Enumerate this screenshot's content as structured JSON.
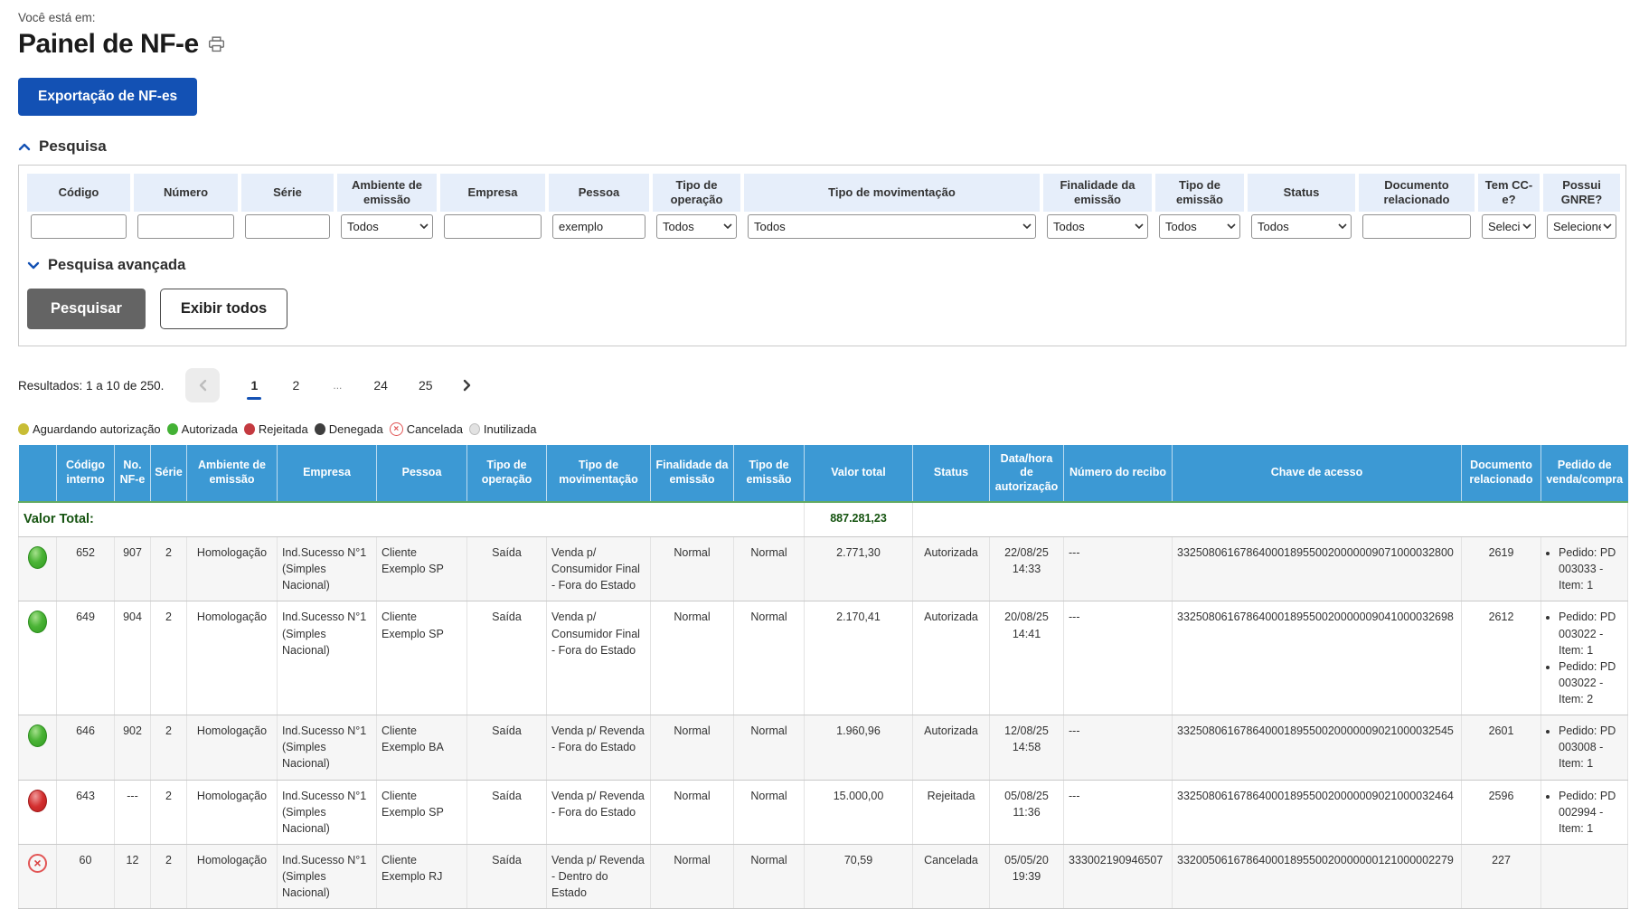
{
  "breadcrumb": "Você está em:",
  "title": "Painel de NF-e",
  "export_button": "Exportação de NF-es",
  "accent_color": "#1351b4",
  "search": {
    "title": "Pesquisa",
    "advanced_title": "Pesquisa avançada",
    "buttons": {
      "search": "Pesquisar",
      "show_all": "Exibir todos"
    },
    "filters": [
      {
        "label": "Código",
        "type": "text",
        "value": ""
      },
      {
        "label": "Número",
        "type": "text",
        "value": ""
      },
      {
        "label": "Série",
        "type": "text",
        "value": ""
      },
      {
        "label": "Ambiente de emissão",
        "type": "select",
        "value": "Todos"
      },
      {
        "label": "Empresa",
        "type": "text",
        "value": ""
      },
      {
        "label": "Pessoa",
        "type": "text",
        "value": "exemplo"
      },
      {
        "label": "Tipo de operação",
        "type": "select",
        "value": "Todos"
      },
      {
        "label": "Tipo de movimentação",
        "type": "select",
        "value": "Todos"
      },
      {
        "label": "Finalidade da emissão",
        "type": "select",
        "value": "Todos"
      },
      {
        "label": "Tipo de emissão",
        "type": "select",
        "value": "Todos"
      },
      {
        "label": "Status",
        "type": "select",
        "value": "Todos"
      },
      {
        "label": "Documento relacionado",
        "type": "text",
        "value": ""
      },
      {
        "label": "Tem CC-e?",
        "type": "select",
        "value": "Selecione"
      },
      {
        "label": "Possui GNRE?",
        "type": "select",
        "value": "Selecione"
      }
    ]
  },
  "pagination": {
    "results_text": "Resultados: 1 a 10 de 250.",
    "pages": [
      {
        "label": "1",
        "active": true
      },
      {
        "label": "2",
        "active": false
      },
      {
        "label": "...",
        "active": false
      },
      {
        "label": "24",
        "active": false
      },
      {
        "label": "25",
        "active": false
      }
    ]
  },
  "legend": [
    {
      "label": "Aguardando autorização",
      "shape": "dot",
      "color": "#c8bd35"
    },
    {
      "label": "Autorizada",
      "shape": "dot",
      "color": "#43b135"
    },
    {
      "label": "Rejeitada",
      "shape": "dot",
      "color": "#c43a40"
    },
    {
      "label": "Denegada",
      "shape": "dot",
      "color": "#3e3e3e"
    },
    {
      "label": "Cancelada",
      "shape": "circle-x",
      "color": "#e05555"
    },
    {
      "label": "Inutilizada",
      "shape": "dot",
      "color": "#e2e2e2"
    }
  ],
  "table": {
    "header_color": "#3c99d4",
    "columns": [
      "",
      "Código interno",
      "No. NF-e",
      "Série",
      "Ambiente de emissão",
      "Empresa",
      "Pessoa",
      "Tipo de operação",
      "Tipo de movimentação",
      "Finalidade da emissão",
      "Tipo de emissão",
      "Valor total",
      "Status",
      "Data/hora de autorização",
      "Número do recibo",
      "Chave de acesso",
      "Documento relacionado",
      "Pedido de venda/compra"
    ],
    "total_label": "Valor Total:",
    "total_value": "887.281,23",
    "rows": [
      {
        "icon": "green",
        "codigo": "652",
        "numero": "907",
        "serie": "2",
        "ambiente": "Homologação",
        "empresa": "Ind.Sucesso N°1 (Simples Nacional)",
        "pessoa": "Cliente Exemplo SP",
        "operacao": "Saída",
        "movimentacao": "Venda p/ Consumidor Final - Fora do Estado",
        "finalidade": "Normal",
        "emissao": "Normal",
        "valor": "2.771,30",
        "status": "Autorizada",
        "data_hora": "22/08/25 14:33",
        "recibo": "---",
        "chave": "33250806167864000189550020000009071000032800",
        "documento": "2619",
        "pedidos": [
          "Pedido: PD 003033 - Item: 1"
        ]
      },
      {
        "icon": "green",
        "codigo": "649",
        "numero": "904",
        "serie": "2",
        "ambiente": "Homologação",
        "empresa": "Ind.Sucesso N°1 (Simples Nacional)",
        "pessoa": "Cliente Exemplo SP",
        "operacao": "Saída",
        "movimentacao": "Venda p/ Consumidor Final - Fora do Estado",
        "finalidade": "Normal",
        "emissao": "Normal",
        "valor": "2.170,41",
        "status": "Autorizada",
        "data_hora": "20/08/25 14:41",
        "recibo": "---",
        "chave": "33250806167864000189550020000009041000032698",
        "documento": "2612",
        "pedidos": [
          "Pedido: PD 003022 - Item: 1",
          "Pedido: PD 003022 - Item: 2"
        ]
      },
      {
        "icon": "green",
        "codigo": "646",
        "numero": "902",
        "serie": "2",
        "ambiente": "Homologação",
        "empresa": "Ind.Sucesso N°1 (Simples Nacional)",
        "pessoa": "Cliente Exemplo BA",
        "operacao": "Saída",
        "movimentacao": "Venda p/ Revenda - Fora do Estado",
        "finalidade": "Normal",
        "emissao": "Normal",
        "valor": "1.960,96",
        "status": "Autorizada",
        "data_hora": "12/08/25 14:58",
        "recibo": "---",
        "chave": "33250806167864000189550020000009021000032545",
        "documento": "2601",
        "pedidos": [
          "Pedido: PD 003008 - Item: 1"
        ]
      },
      {
        "icon": "red",
        "codigo": "643",
        "numero": "---",
        "serie": "2",
        "ambiente": "Homologação",
        "empresa": "Ind.Sucesso N°1 (Simples Nacional)",
        "pessoa": "Cliente Exemplo SP",
        "operacao": "Saída",
        "movimentacao": "Venda p/ Revenda - Fora do Estado",
        "finalidade": "Normal",
        "emissao": "Normal",
        "valor": "15.000,00",
        "status": "Rejeitada",
        "data_hora": "05/08/25 11:36",
        "recibo": "---",
        "chave": "33250806167864000189550020000009021000032464",
        "documento": "2596",
        "pedidos": [
          "Pedido: PD 002994 - Item: 1"
        ]
      },
      {
        "icon": "cancel",
        "codigo": "60",
        "numero": "12",
        "serie": "2",
        "ambiente": "Homologação",
        "empresa": "Ind.Sucesso N°1 (Simples Nacional)",
        "pessoa": "Cliente Exemplo RJ",
        "operacao": "Saída",
        "movimentacao": "Venda p/ Revenda - Dentro do Estado",
        "finalidade": "Normal",
        "emissao": "Normal",
        "valor": "70,59",
        "status": "Cancelada",
        "data_hora": "05/05/20 19:39",
        "recibo": "333002190946507",
        "chave": "33200506167864000189550020000000121000002279",
        "documento": "227",
        "pedidos": []
      }
    ]
  }
}
